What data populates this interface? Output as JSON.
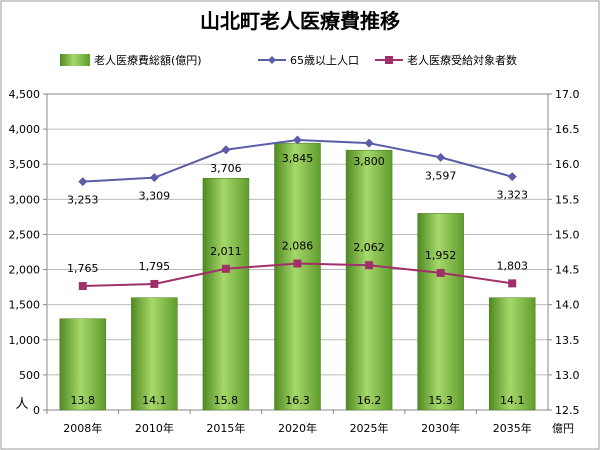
{
  "chart_data": {
    "type": "bar",
    "title": "山北町老人医療費推移",
    "categories": [
      "2008年",
      "2010年",
      "2015年",
      "2020年",
      "2025年",
      "2030年",
      "2035年"
    ],
    "ylabel_left": "人",
    "ylabel_right": "億円",
    "ylim_left": [
      0,
      4500
    ],
    "ylim_right": [
      12.5,
      17.0
    ],
    "left_ticks": [
      "0",
      "500",
      "1,000",
      "1,500",
      "2,000",
      "2,500",
      "3,000",
      "3,500",
      "4,000",
      "4,500"
    ],
    "right_ticks": [
      "12.5",
      "13.0",
      "13.5",
      "14.0",
      "14.5",
      "15.0",
      "15.5",
      "16.0",
      "16.5",
      "17.0"
    ],
    "legend_position": "top",
    "grid": "horizontal",
    "series": [
      {
        "name": "老人医療費総額(億円)",
        "kind": "bar",
        "axis": "right",
        "color": "#7cb342",
        "values": [
          13.8,
          14.1,
          15.8,
          16.3,
          16.2,
          15.3,
          14.1
        ],
        "labels": [
          "13.8",
          "14.1",
          "15.8",
          "16.3",
          "16.2",
          "15.3",
          "14.1"
        ]
      },
      {
        "name": "65歳以上人口",
        "kind": "line",
        "axis": "left",
        "color": "#5b5ea6",
        "marker": "diamond",
        "values": [
          3253,
          3309,
          3706,
          3845,
          3800,
          3597,
          3323
        ],
        "labels": [
          "3,253",
          "3,309",
          "3,706",
          "3,845",
          "3,800",
          "3,597",
          "3,323"
        ]
      },
      {
        "name": "老人医療受給対象者数",
        "kind": "line",
        "axis": "left",
        "color": "#a0306a",
        "marker": "square",
        "values": [
          1765,
          1795,
          2011,
          2086,
          2062,
          1952,
          1803
        ],
        "labels": [
          "1,765",
          "1,795",
          "2,011",
          "2,086",
          "2,062",
          "1,952",
          "1,803"
        ]
      }
    ]
  }
}
